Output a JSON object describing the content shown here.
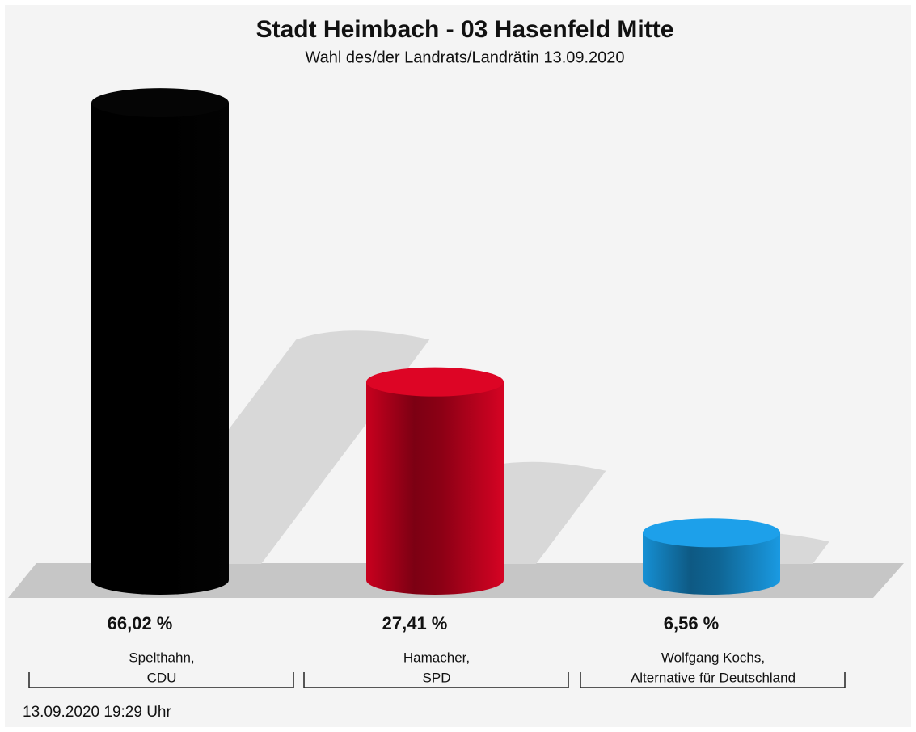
{
  "chart_data": {
    "type": "bar",
    "title": "Stadt Heimbach - 03 Hasenfeld Mitte",
    "subtitle": "Wahl des/der Landrats/Landrätin 13.09.2020",
    "categories": [
      [
        "Spelthahn,",
        "CDU"
      ],
      [
        "Hamacher,",
        "SPD"
      ],
      [
        "Wolfgang Kochs,",
        "Alternative für Deutschland"
      ]
    ],
    "values": [
      66.02,
      27.41,
      6.56
    ],
    "value_labels": [
      "66,02 %",
      "27,41 %",
      "6,56 %"
    ],
    "colors": [
      "#000000",
      "#c8001e",
      "#1690d4"
    ],
    "footnote": "13.09.2020 19:29 Uhr"
  }
}
